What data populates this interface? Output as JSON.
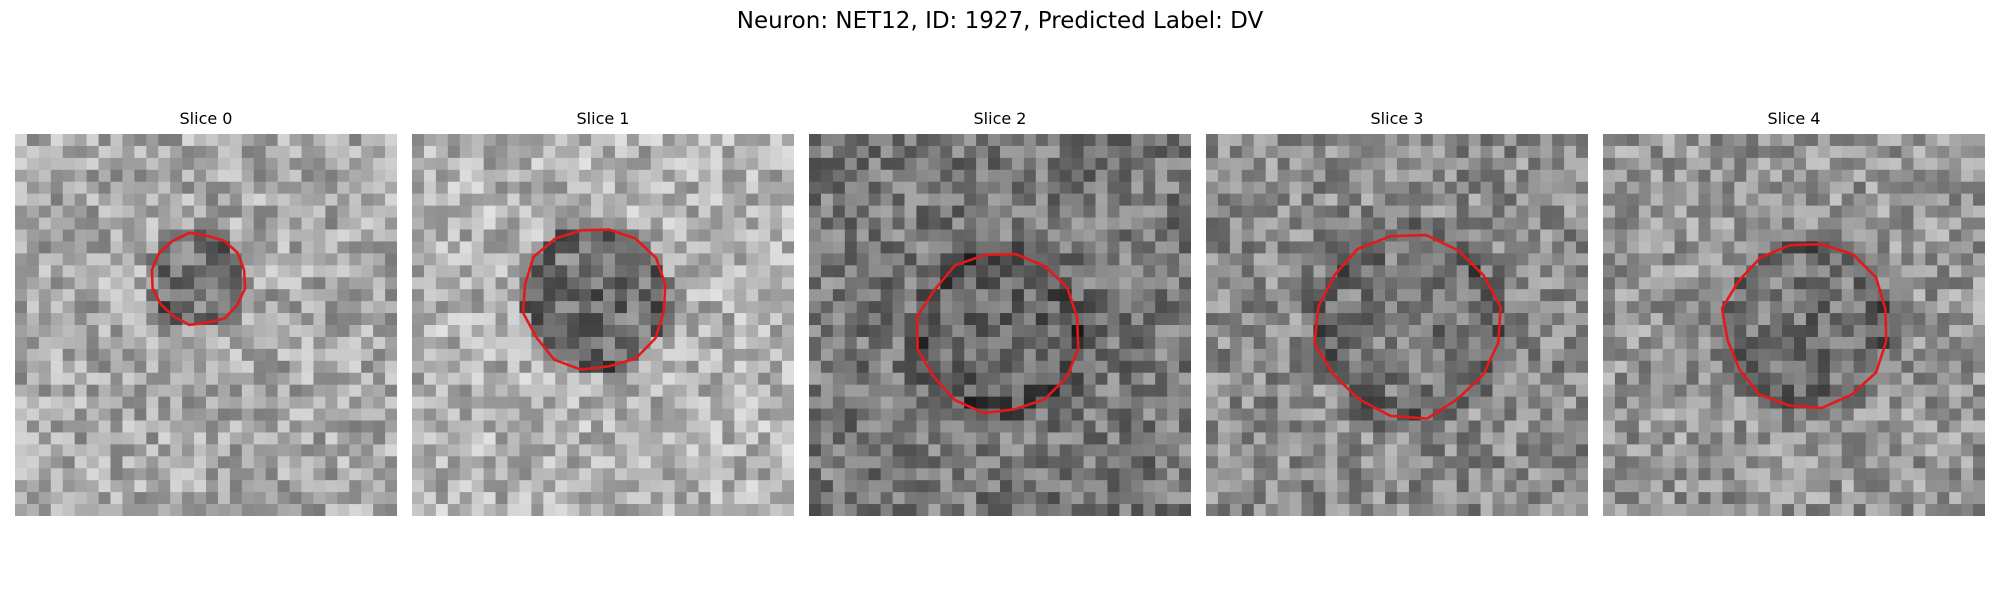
{
  "figure": {
    "title": "Neuron: NET12, ID: 1927, Predicted Label: DV"
  },
  "panels": [
    {
      "title": "Slice 0",
      "base_gray": 168,
      "blob_darkness": 0.55,
      "contour_scale": 0.63
    },
    {
      "title": "Slice 1",
      "base_gray": 178,
      "blob_darkness": 0.72,
      "contour_scale": 0.99
    },
    {
      "title": "Slice 2",
      "base_gray": 120,
      "blob_darkness": 0.22,
      "contour_scale": 1.12
    },
    {
      "title": "Slice 3",
      "base_gray": 140,
      "blob_darkness": 0.2,
      "contour_scale": 1.27
    },
    {
      "title": "Slice 4",
      "base_gray": 150,
      "blob_darkness": 0.35,
      "contour_scale": 1.13
    }
  ],
  "colors": {
    "contour": "#e31a1c",
    "background": "#ffffff"
  }
}
